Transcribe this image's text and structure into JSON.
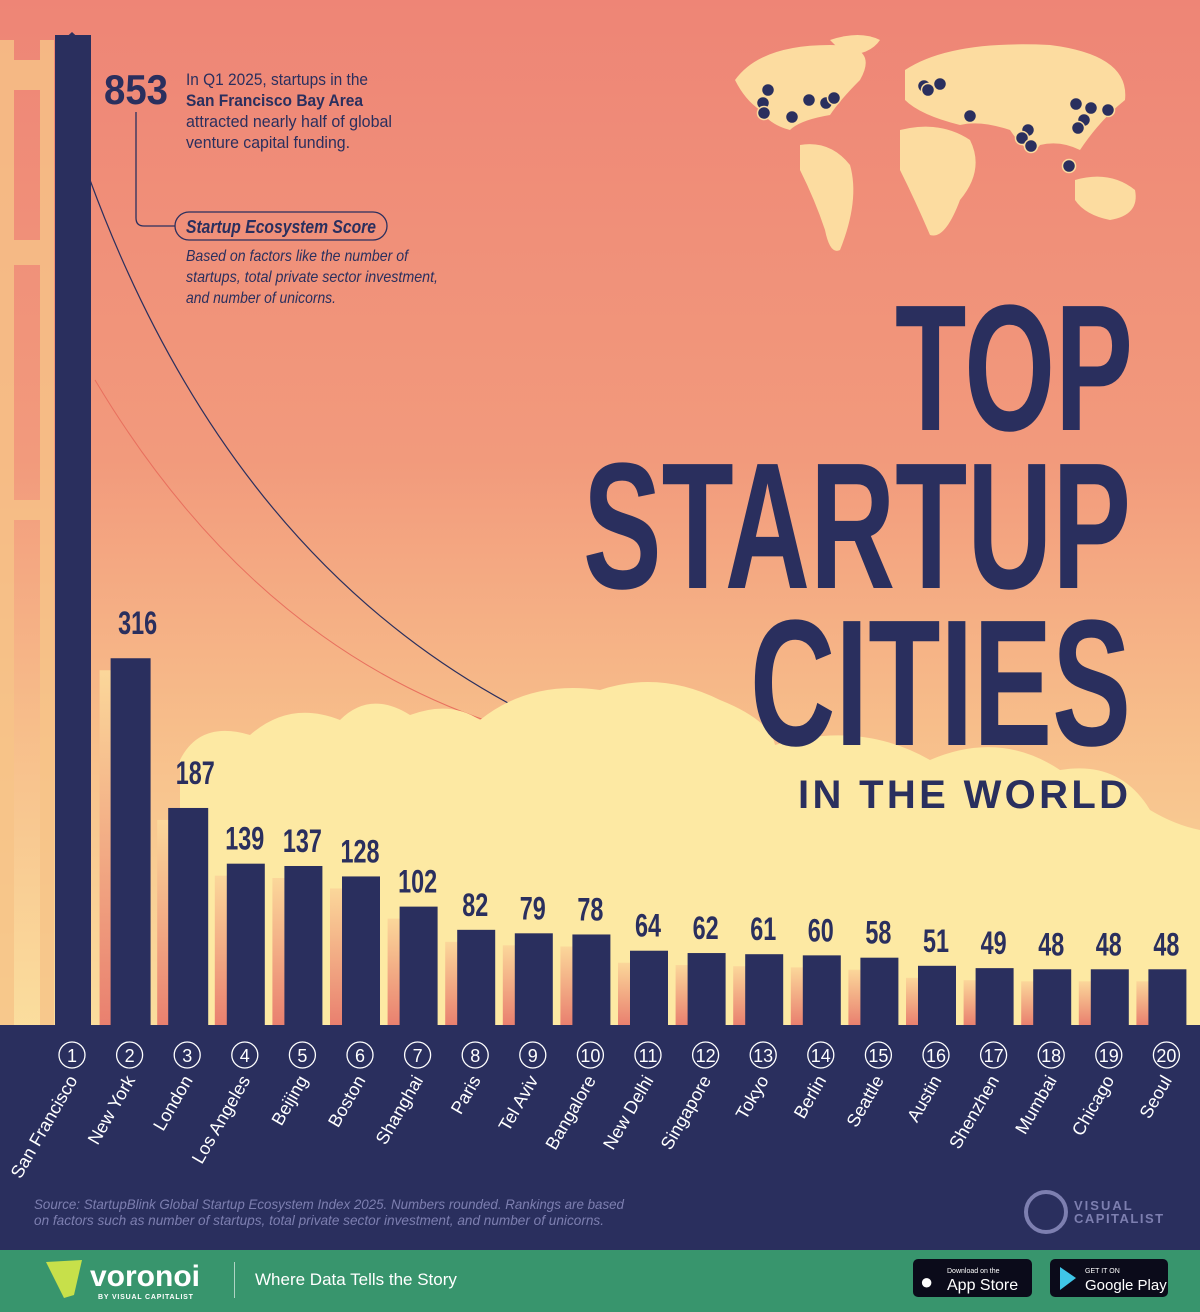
{
  "chart_data": {
    "type": "bar",
    "title": "TOP STARTUP CITIES",
    "subtitle": "IN THE WORLD",
    "categories": [
      "San Francisco",
      "New York",
      "London",
      "Los Angeles",
      "Beijing",
      "Boston",
      "Shanghai",
      "Paris",
      "Tel Aviv",
      "Bangalore",
      "New Delhi",
      "Singapore",
      "Tokyo",
      "Berlin",
      "Seattle",
      "Austin",
      "Shenzhen",
      "Mumbai",
      "Chicago",
      "Seoul"
    ],
    "ranks": [
      "1",
      "2",
      "3",
      "4",
      "5",
      "6",
      "7",
      "8",
      "9",
      "10",
      "11",
      "12",
      "13",
      "14",
      "15",
      "16",
      "17",
      "18",
      "19",
      "20"
    ],
    "values": [
      853,
      316,
      187,
      139,
      137,
      128,
      102,
      82,
      79,
      78,
      64,
      62,
      61,
      60,
      58,
      51,
      49,
      48,
      48,
      48
    ],
    "value_labels": [
      "853",
      "316",
      "187",
      "139",
      "137",
      "128",
      "102",
      "82",
      "79",
      "78",
      "64",
      "62",
      "61",
      "60",
      "58",
      "51",
      "49",
      "48",
      "48",
      "48"
    ],
    "ylabel": "Startup Ecosystem Score",
    "ylim": [
      0,
      853
    ],
    "grid": false,
    "colors": {
      "bar": "#2a2f5e",
      "background_top": "#ef8878",
      "background_bottom": "#fbe0a0",
      "cloud": "#fde9a3"
    }
  },
  "title": {
    "line1": "TOP",
    "line2": "STARTUP",
    "line3": "CITIES",
    "line4": "IN THE WORLD"
  },
  "annotation": {
    "line1": "In Q1 2025, startups in the",
    "line2_bold": "San Francisco Bay Area",
    "line3": "attracted nearly half of global",
    "line4": "venture capital funding."
  },
  "legend": {
    "label": "Startup Ecosystem Score",
    "desc1": "Based on factors like the number of",
    "desc2": "startups, total private sector investment,",
    "desc3": "and number of unicorns."
  },
  "source": {
    "line1": "Source: StartupBlink Global Startup Ecosystem Index 2025. Numbers rounded. Rankings are based",
    "line2": "on factors such as number of startups, total private sector investment, and number of unicorns."
  },
  "brand": {
    "vc_line1": "VISUAL",
    "vc_line2": "CAPITALIST"
  },
  "footer": {
    "logo": "voronoi",
    "logo_sub": "BY VISUAL CAPITALIST",
    "tagline": "Where Data Tells the Story",
    "appstore_small": "Download on the",
    "appstore": "App Store",
    "googleplay_small": "GET IT ON",
    "googleplay": "Google Play",
    "color": "#38956d"
  }
}
